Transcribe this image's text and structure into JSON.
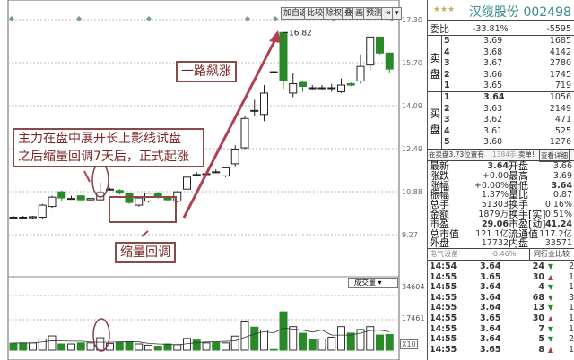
{
  "toolbar": [
    "加自选",
    "比较",
    "除权",
    "叠",
    "画",
    "预测",
    "⇥",
    "▾"
  ],
  "price_axis": [
    "17.30",
    "15.70",
    "14.09",
    "12.49",
    "10.88",
    "9.27"
  ],
  "high_label": "16.82",
  "volume": {
    "selector": "成交量",
    "axis": [
      "34604",
      "17461",
      "X10"
    ]
  },
  "annotations": {
    "line1": "主力在盘中展开长上影线试盘",
    "line2": "之后缩量回调7天后，正式起涨",
    "pullback": "缩量回调",
    "surge": "一路飙涨"
  },
  "colors": {
    "down": "#2a8a2a",
    "up": "#ffffff",
    "annotation": "#8b4a4a"
  },
  "candles": [
    [
      9.9,
      9.9,
      9.95,
      9.85
    ],
    [
      9.9,
      9.9,
      9.95,
      9.85
    ],
    [
      9.88,
      9.92,
      9.95,
      9.85
    ],
    [
      9.9,
      10.35,
      10.4,
      9.85
    ],
    [
      10.3,
      10.65,
      10.7,
      10.25
    ],
    [
      10.85,
      10.62,
      10.9,
      10.5
    ],
    [
      10.6,
      10.6,
      10.7,
      10.55
    ],
    [
      10.7,
      10.55,
      10.72,
      10.5
    ],
    [
      10.55,
      10.6,
      10.62,
      10.5
    ],
    [
      10.55,
      10.82,
      11.2,
      10.5
    ],
    [
      10.95,
      10.95,
      11.0,
      10.9
    ],
    [
      10.9,
      10.8,
      10.95,
      10.75
    ],
    [
      10.8,
      10.45,
      10.82,
      10.4
    ],
    [
      10.35,
      10.62,
      10.65,
      10.3
    ],
    [
      10.5,
      10.8,
      10.82,
      10.45
    ],
    [
      10.8,
      10.65,
      10.85,
      10.6
    ],
    [
      10.65,
      10.55,
      10.7,
      10.5
    ],
    [
      10.5,
      10.85,
      10.88,
      10.45
    ],
    [
      10.95,
      11.4,
      11.5,
      10.9
    ],
    [
      11.5,
      11.5,
      11.6,
      11.45
    ],
    [
      11.53,
      11.53,
      11.6,
      11.48
    ],
    [
      11.6,
      11.6,
      11.7,
      11.55
    ],
    [
      11.45,
      11.75,
      11.8,
      11.4
    ],
    [
      11.9,
      12.45,
      12.6,
      11.8
    ],
    [
      12.5,
      13.6,
      13.7,
      12.45
    ],
    [
      13.9,
      13.9,
      14.3,
      13.7
    ],
    [
      13.75,
      14.55,
      14.85,
      13.5
    ],
    [
      15.35,
      15.35,
      15.4,
      15.3
    ],
    [
      16.82,
      15.0,
      16.82,
      14.7
    ],
    [
      14.55,
      14.9,
      15.3,
      14.4
    ],
    [
      14.95,
      14.8,
      15.0,
      14.6
    ],
    [
      14.75,
      14.75,
      14.85,
      14.65
    ],
    [
      14.75,
      14.75,
      14.85,
      14.65
    ],
    [
      14.75,
      14.75,
      14.9,
      14.6
    ],
    [
      14.6,
      14.85,
      15.1,
      14.55
    ],
    [
      14.9,
      14.85,
      14.95,
      14.8
    ],
    [
      15.0,
      15.55,
      16.0,
      14.9
    ],
    [
      15.6,
      16.65,
      16.65,
      15.4
    ],
    [
      16.65,
      16.05,
      16.65,
      16.0
    ],
    [
      16.05,
      15.45,
      16.05,
      15.3
    ]
  ],
  "volumes": [
    [
      4000,
      0
    ],
    [
      4100,
      0
    ],
    [
      4100,
      1
    ],
    [
      6300,
      1
    ],
    [
      8000,
      1
    ],
    [
      3500,
      0
    ],
    [
      3500,
      1
    ],
    [
      4100,
      0
    ],
    [
      4100,
      1
    ],
    [
      7000,
      1
    ],
    [
      3800,
      1
    ],
    [
      4400,
      0
    ],
    [
      4700,
      0
    ],
    [
      3500,
      1
    ],
    [
      2800,
      1
    ],
    [
      2200,
      0
    ],
    [
      3500,
      0
    ],
    [
      3100,
      1
    ],
    [
      6600,
      1
    ],
    [
      5700,
      0
    ],
    [
      4100,
      1
    ],
    [
      4400,
      0
    ],
    [
      4100,
      1
    ],
    [
      7900,
      1
    ],
    [
      15800,
      1
    ],
    [
      12900,
      0
    ],
    [
      11300,
      1
    ],
    [
      400,
      0
    ],
    [
      21500,
      0
    ],
    [
      13200,
      1
    ],
    [
      9500,
      0
    ],
    [
      6000,
      0
    ],
    [
      6300,
      1
    ],
    [
      7300,
      1
    ],
    [
      13200,
      1
    ],
    [
      9600,
      0
    ],
    [
      11600,
      1
    ],
    [
      13200,
      1
    ],
    [
      8500,
      0
    ],
    [
      8800,
      0
    ]
  ],
  "panel": {
    "stars": "★★★",
    "title": "汉缆股份 002498",
    "weibi": {
      "label": "委比",
      "pct": "-33.81%",
      "diff": "-5595"
    },
    "sell_label": [
      "卖",
      "盘"
    ],
    "buy_label": [
      "买",
      "盘"
    ],
    "sell": [
      [
        "5",
        "3.69",
        "1685"
      ],
      [
        "4",
        "3.68",
        "4142"
      ],
      [
        "3",
        "3.67",
        "2780"
      ],
      [
        "2",
        "3.66",
        "1745"
      ],
      [
        "1",
        "3.65",
        "719"
      ]
    ],
    "buy": [
      [
        "1",
        "3.64",
        "1056"
      ],
      [
        "2",
        "3.63",
        "2149"
      ],
      [
        "3",
        "3.62",
        "471"
      ],
      [
        "4",
        "3.61",
        "525"
      ],
      [
        "5",
        "3.60",
        "1276"
      ]
    ],
    "info": "在卖盘3.73位置有",
    "info_vol": "1384手",
    "info_sell": "卖单!",
    "info_link": "查看详细",
    "stats": [
      [
        "最新",
        "3.64",
        "开盘",
        "3.66"
      ],
      [
        "涨跌",
        "+0.00",
        "最高",
        "3.69"
      ],
      [
        "涨幅",
        "+0.00%",
        "最低",
        "3.64"
      ],
      [
        "振幅",
        "1.37%",
        "量比",
        "0.87"
      ],
      [
        "总手",
        "51303",
        "换手",
        "0.16%"
      ],
      [
        "金额",
        "1879万",
        "换手[实]",
        "0.51%"
      ],
      [
        "市盈",
        "29.06",
        "市盈[动]",
        "41.24"
      ],
      [
        "总市值",
        "121.1亿",
        "流通值",
        "117.2亿"
      ],
      [
        "外盘",
        "17732",
        "内盘",
        "33571"
      ]
    ],
    "industry": "电气设备",
    "industry_pct": "-0.46%",
    "compare": "同行业比较",
    "ticks": [
      [
        "14:54",
        "3.64",
        "24",
        "down",
        "2"
      ],
      [
        "14:55",
        "3.65",
        "30",
        "up",
        "1"
      ],
      [
        "14:55",
        "3.64",
        "4",
        "down",
        "1"
      ],
      [
        "14:55",
        "3.64",
        "68",
        "down",
        "3"
      ],
      [
        "14:55",
        "3.64",
        "13",
        "down",
        "1"
      ],
      [
        "14:55",
        "3.65",
        "30",
        "up",
        "1"
      ],
      [
        "14:55",
        "3.64",
        "7",
        "down",
        "1"
      ],
      [
        "14:55",
        "3.64",
        "5",
        "down",
        "2"
      ],
      [
        "14:55",
        "3.65",
        "8",
        "up",
        "1"
      ]
    ]
  }
}
